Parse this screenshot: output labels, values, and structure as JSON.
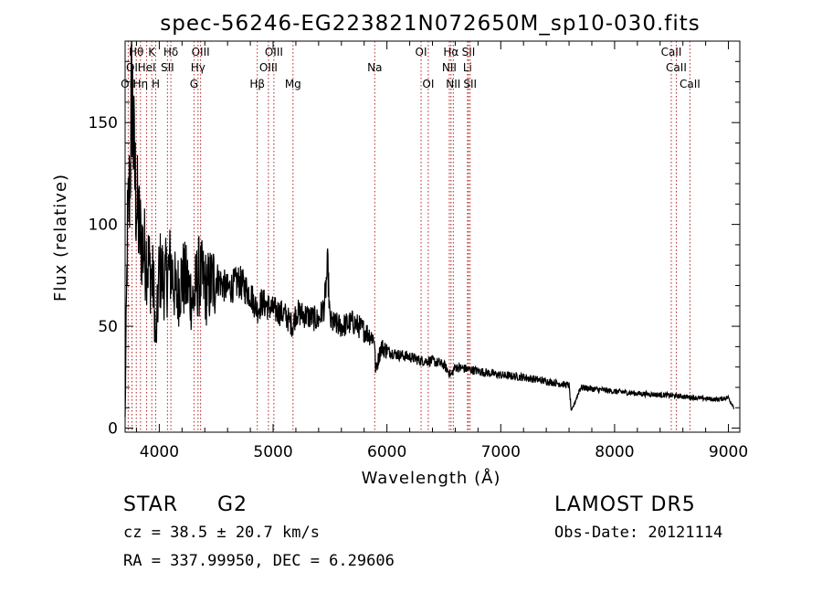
{
  "chart_data": {
    "type": "line",
    "title": "spec-56246-EG223821N072650M_sp10-030.fits",
    "xlabel": "Wavelength (Å)",
    "ylabel": "Flux (relative)",
    "xlim": [
      3700,
      9100
    ],
    "ylim": [
      -2,
      190
    ],
    "x_ticks": [
      4000,
      5000,
      6000,
      7000,
      8000,
      9000
    ],
    "y_ticks": [
      0,
      50,
      100,
      150
    ],
    "grid": false,
    "series": [
      {
        "color": "#000000",
        "anchors": [
          [
            3700,
            5
          ],
          [
            3720,
            95
          ],
          [
            3740,
            120
          ],
          [
            3760,
            170
          ],
          [
            3780,
            128
          ],
          [
            3800,
            110
          ],
          [
            3830,
            95
          ],
          [
            3860,
            88
          ],
          [
            3900,
            82
          ],
          [
            3950,
            70
          ],
          [
            3970,
            40
          ],
          [
            4000,
            78
          ],
          [
            4050,
            72
          ],
          [
            4100,
            80
          ],
          [
            4150,
            65
          ],
          [
            4200,
            74
          ],
          [
            4250,
            70
          ],
          [
            4300,
            62
          ],
          [
            4340,
            75
          ],
          [
            4380,
            72
          ],
          [
            4420,
            68
          ],
          [
            4500,
            74
          ],
          [
            4600,
            68
          ],
          [
            4700,
            72
          ],
          [
            4800,
            66
          ],
          [
            4861,
            58
          ],
          [
            4900,
            62
          ],
          [
            5000,
            58
          ],
          [
            5100,
            56
          ],
          [
            5175,
            50
          ],
          [
            5200,
            57
          ],
          [
            5300,
            55
          ],
          [
            5400,
            53
          ],
          [
            5450,
            60
          ],
          [
            5480,
            80
          ],
          [
            5500,
            52
          ],
          [
            5600,
            50
          ],
          [
            5700,
            52
          ],
          [
            5800,
            48
          ],
          [
            5890,
            44
          ],
          [
            5900,
            28
          ],
          [
            5950,
            40
          ],
          [
            6000,
            38
          ],
          [
            6100,
            36
          ],
          [
            6200,
            35
          ],
          [
            6300,
            33
          ],
          [
            6400,
            33
          ],
          [
            6500,
            31
          ],
          [
            6563,
            26
          ],
          [
            6600,
            30
          ],
          [
            6700,
            29
          ],
          [
            6800,
            28
          ],
          [
            6900,
            27
          ],
          [
            7000,
            26
          ],
          [
            7200,
            25
          ],
          [
            7400,
            23
          ],
          [
            7600,
            21
          ],
          [
            7620,
            8
          ],
          [
            7700,
            20
          ],
          [
            8000,
            18
          ],
          [
            8200,
            17
          ],
          [
            8500,
            16
          ],
          [
            8700,
            15
          ],
          [
            8900,
            14
          ],
          [
            9000,
            15
          ],
          [
            9050,
            10
          ]
        ]
      }
    ],
    "spectral_lines": [
      {
        "label": "Hθ",
        "x": 3798,
        "row": 1
      },
      {
        "label": "OI",
        "x": 3760,
        "row": 2
      },
      {
        "label": "OII",
        "x": 3727,
        "row": 3
      },
      {
        "label": "K",
        "x": 3934,
        "row": 1
      },
      {
        "label": "HeI",
        "x": 3889,
        "row": 2
      },
      {
        "label": "Hη",
        "x": 3835,
        "row": 3
      },
      {
        "label": "Hδ",
        "x": 4102,
        "row": 1
      },
      {
        "label": "SII",
        "x": 4072,
        "row": 2
      },
      {
        "label": "H",
        "x": 3969,
        "row": 3
      },
      {
        "label": "OIII",
        "x": 4363,
        "row": 1
      },
      {
        "label": "Hγ",
        "x": 4340,
        "row": 2
      },
      {
        "label": "G",
        "x": 4305,
        "row": 3
      },
      {
        "label": "OIII",
        "x": 5007,
        "row": 1
      },
      {
        "label": "OIII",
        "x": 4959,
        "row": 2
      },
      {
        "label": "Hβ",
        "x": 4861,
        "row": 3
      },
      {
        "label": "Mg",
        "x": 5175,
        "row": 3
      },
      {
        "label": "Na",
        "x": 5893,
        "row": 2
      },
      {
        "label": "OI",
        "x": 6300,
        "row": 1
      },
      {
        "label": "OI",
        "x": 6363,
        "row": 3
      },
      {
        "label": "Hα",
        "x": 6563,
        "row": 1
      },
      {
        "label": "NII",
        "x": 6548,
        "row": 2
      },
      {
        "label": "NII",
        "x": 6583,
        "row": 3
      },
      {
        "label": "SII",
        "x": 6717,
        "row": 1
      },
      {
        "label": "Li",
        "x": 6708,
        "row": 2
      },
      {
        "label": "SII",
        "x": 6731,
        "row": 3
      },
      {
        "label": "CaII",
        "x": 8498,
        "row": 1
      },
      {
        "label": "CaII",
        "x": 8542,
        "row": 2
      },
      {
        "label": "CaII",
        "x": 8662,
        "row": 3
      }
    ]
  },
  "info": {
    "object_type": "STAR",
    "subclass": "G2",
    "survey": "LAMOST DR5",
    "velocity": "cz = 38.5 ± 20.7 km/s",
    "obs_date": "Obs-Date: 20121114",
    "coords": "RA = 337.99950, DEC =   6.29606"
  },
  "colors": {
    "spectrum": "#000000",
    "line_markers": "#b22222",
    "axes": "#000000",
    "background": "#ffffff"
  }
}
